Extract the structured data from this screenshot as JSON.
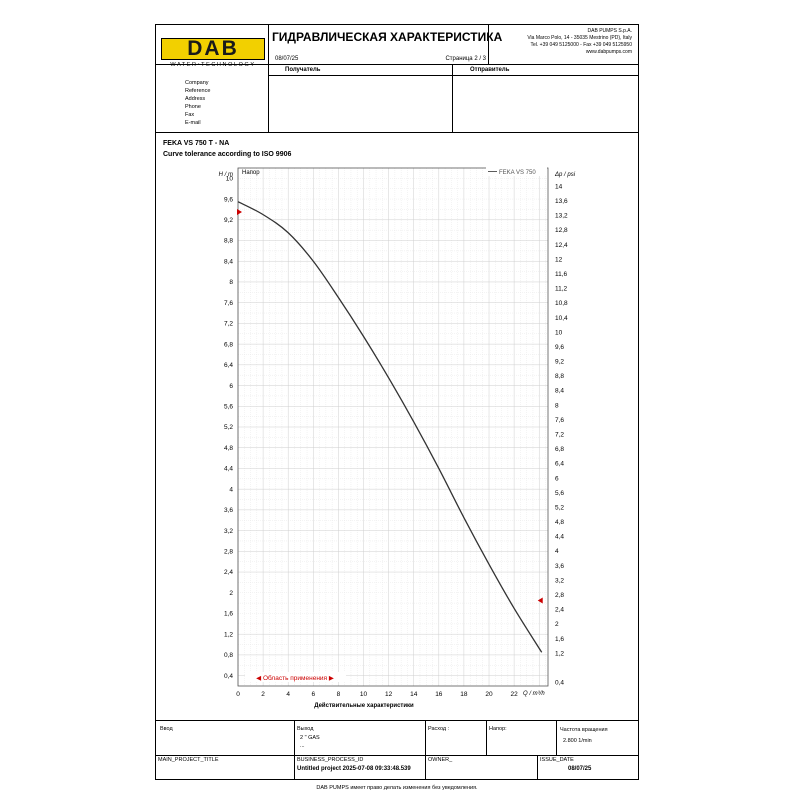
{
  "header": {
    "logo_text": "DAB",
    "logo_subtitle": "WATER•TECHNOLOGY",
    "title": "ГИДРАВЛИЧЕСКАЯ ХАРАКТЕРИСТИКА",
    "date": "08/07/25",
    "page_label": "Страница 2 / 3",
    "company_lines": [
      "DAB PUMPS S.p.A.",
      "Via Marco Polo, 14 - 35035 Mestrino (PD), Italy",
      "Tel. +39 049 5125000 - Fax +39 049 5125950",
      "www.dabpumps.com"
    ],
    "recipient_label": "Получатель",
    "sender_label": "Отправитель"
  },
  "contact_labels": [
    "Company",
    "Reference",
    "Address",
    "Phone",
    "Fax",
    "E-mail"
  ],
  "product": {
    "name": "FEKA VS 750 T - NA",
    "tolerance": "Curve tolerance according to ISO 9906"
  },
  "chart_data": {
    "type": "line",
    "panel_label": "Напор",
    "xlabel": "Q / m³/h",
    "ylabel_left": "H / m",
    "ylabel_right": "Δp / psi",
    "x_caption": "Действительные характеристики",
    "xlim": [
      0,
      24.7
    ],
    "ylim": [
      0.2,
      10.2
    ],
    "y2lim": [
      0.3,
      14.5
    ],
    "x_ticks": [
      0,
      2,
      4,
      6,
      8,
      10,
      12,
      14,
      16,
      18,
      20,
      22
    ],
    "y_ticks": [
      0.4,
      0.8,
      1.2,
      1.6,
      2,
      2.4,
      2.8,
      3.2,
      3.6,
      4,
      4.4,
      4.8,
      5.2,
      5.6,
      6,
      6.4,
      6.8,
      7.2,
      7.6,
      8,
      8.4,
      8.8,
      9.2,
      9.6,
      10
    ],
    "y2_ticks": [
      0.4,
      1.2,
      1.6,
      2,
      2.4,
      2.8,
      3.2,
      3.6,
      4,
      4.4,
      4.8,
      5.2,
      5.6,
      6,
      6.4,
      6.8,
      7.2,
      7.6,
      8,
      8.4,
      8.8,
      9.2,
      9.6,
      10,
      10.4,
      10.8,
      11.2,
      11.6,
      12,
      12.4,
      12.8,
      13.2,
      13.6,
      14
    ],
    "grid": true,
    "legend": "top-right",
    "series": [
      {
        "name": "FEKA VS 750",
        "color": "#333333",
        "x": [
          0,
          2,
          4,
          6,
          8,
          10,
          12,
          14,
          16,
          18,
          20,
          22,
          24.2
        ],
        "y": [
          9.55,
          9.3,
          8.95,
          8.4,
          7.7,
          6.95,
          6.15,
          5.3,
          4.4,
          3.45,
          2.55,
          1.7,
          0.85
        ]
      }
    ],
    "range_markers": {
      "h_start": 9.35,
      "h_end": 1.85
    },
    "application_range_label": "◀ Область применения ▶",
    "application_range_color": "#cc0000"
  },
  "footer": {
    "labels": {
      "input": "Ввод",
      "output": "Выход",
      "flow": "Расход :",
      "head": "Напор:",
      "speed": "Частота вращения",
      "main_project": "MAIN_PROJECT_TITLE",
      "business_process": "BUSINESS_PROCESS_ID",
      "owner": "OWNER_",
      "issue_date": "ISSUE_DATE"
    },
    "output_value": "2 \" GAS",
    "output_extra": "...",
    "speed_value": "2.800 1/min",
    "business_process_value": "Untitled project 2025-07-08 09:33:48.539",
    "issue_date_value": "08/07/25",
    "disclaimer": "DAB PUMPS имеет право делать изменения без уведомления."
  }
}
